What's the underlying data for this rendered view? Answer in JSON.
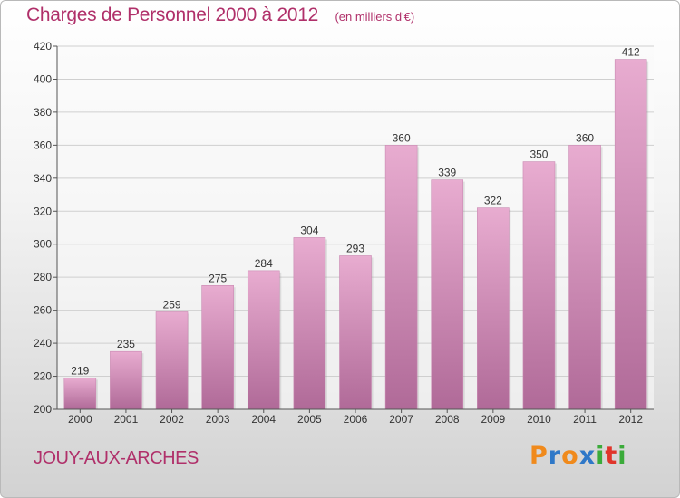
{
  "header": {
    "title": "Charges de Personnel 2000 à 2012",
    "unit_note": "(en milliers d'€)"
  },
  "footer": {
    "town": "JOUY-AUX-ARCHES",
    "brand_letters": [
      "P",
      "r",
      "o",
      "x",
      "i",
      "t",
      "i"
    ],
    "brand_colors": [
      "#f08a1c",
      "#2f78c8",
      "#f08a1c",
      "#2f78c8",
      "#3bab3a",
      "#e0352b",
      "#3bab3a"
    ]
  },
  "colors": {
    "title": "#b0306a",
    "bar_top": "#e8acd0",
    "bar_bottom": "#b06a98",
    "grid": "#cfcfcf",
    "axis": "#555555"
  },
  "chart_data": {
    "type": "bar",
    "categories": [
      "2000",
      "2001",
      "2002",
      "2003",
      "2004",
      "2005",
      "2006",
      "2007",
      "2008",
      "2009",
      "2010",
      "2011",
      "2012"
    ],
    "values": [
      219,
      235,
      259,
      275,
      284,
      304,
      293,
      360,
      339,
      322,
      350,
      360,
      412
    ],
    "data_labels": [
      "219",
      "235",
      "259",
      "275",
      "284",
      "304",
      "293",
      "360",
      "339",
      "322",
      "350",
      "360",
      "412"
    ],
    "ylim": [
      200,
      420
    ],
    "yticks": [
      200,
      220,
      240,
      260,
      280,
      300,
      320,
      340,
      360,
      380,
      400,
      420
    ],
    "ytick_labels": [
      "200",
      "220",
      "240",
      "260",
      "280",
      "300",
      "320",
      "340",
      "360",
      "380",
      "400",
      "420"
    ],
    "grid": true,
    "legend": false
  }
}
